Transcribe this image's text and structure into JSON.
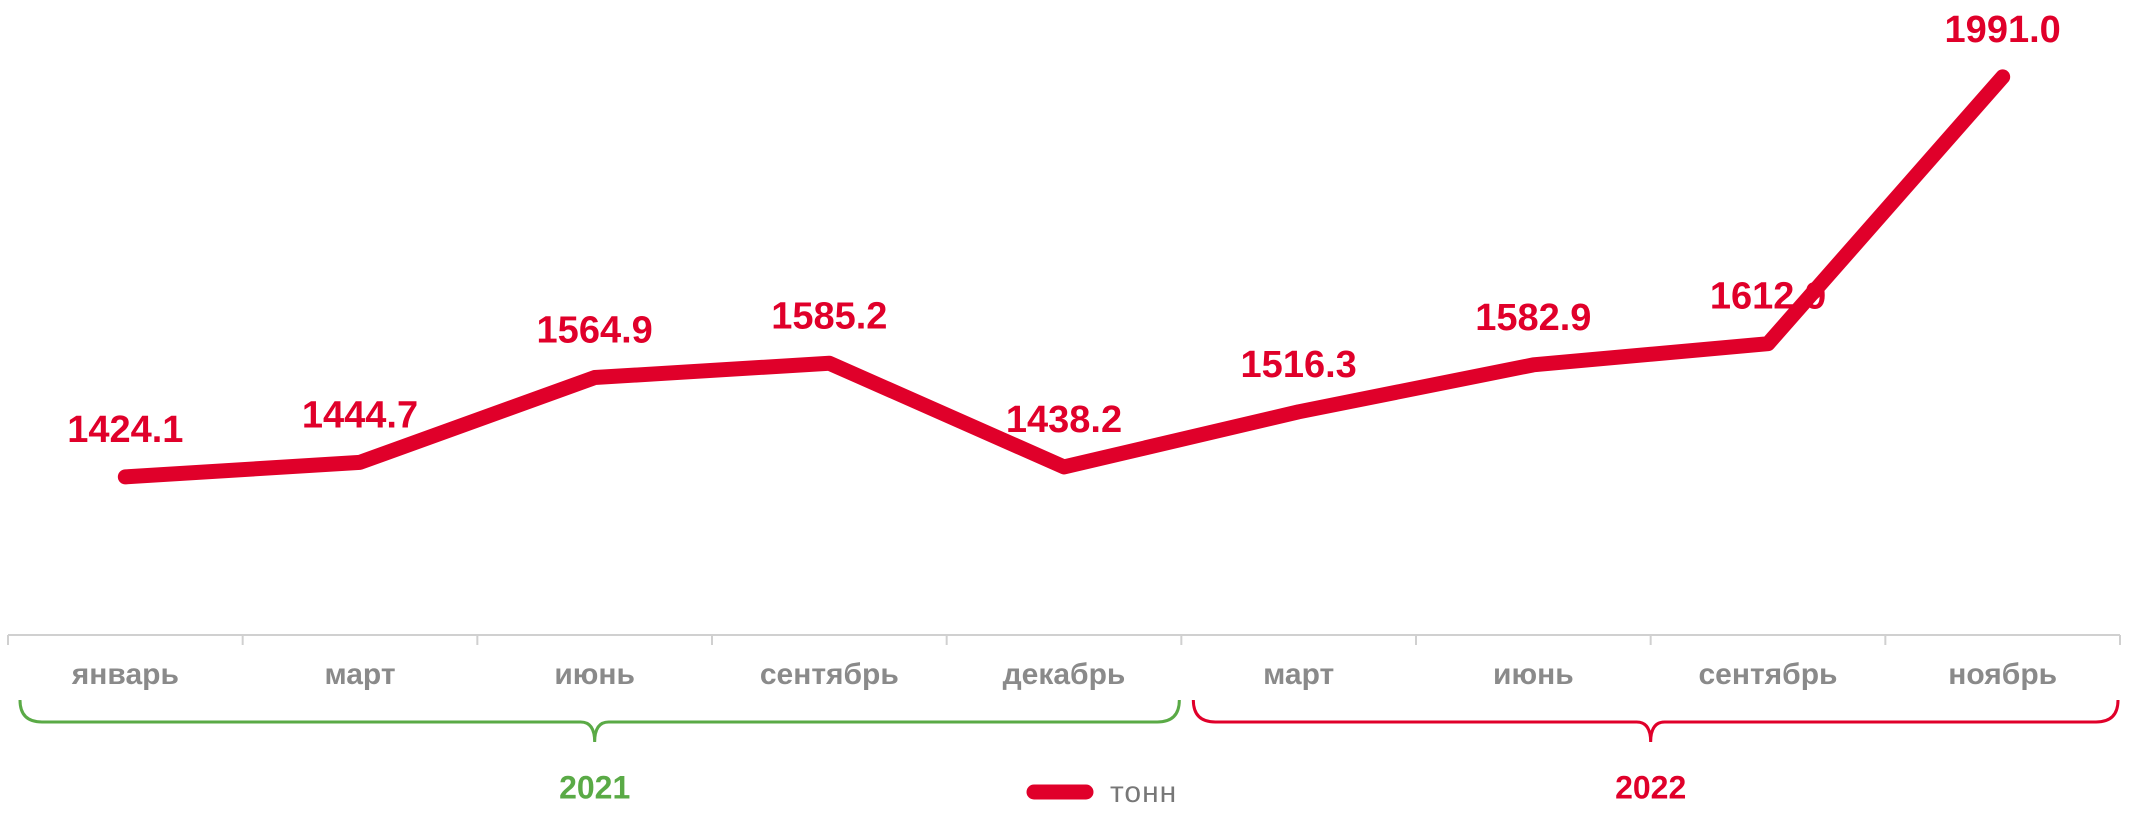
{
  "chart_data": {
    "type": "line",
    "categories": [
      "январь",
      "март",
      "июнь",
      "сентябрь",
      "декабрь",
      "март",
      "июнь",
      "сентябрь",
      "ноябрь"
    ],
    "series": [
      {
        "name": "тонн",
        "color": "#e0002a",
        "values": [
          1424.1,
          1444.7,
          1564.9,
          1585.2,
          1438.2,
          1516.3,
          1582.9,
          1612.9,
          1991.0
        ],
        "value_labels": [
          "1424.1",
          "1444.7",
          "1564.9",
          "1585.2",
          "1438.2",
          "1516.3",
          "1582.9",
          "1612.9",
          "1991.0"
        ]
      }
    ],
    "ylim": [
      1200,
      2100
    ],
    "groups": [
      {
        "label": "2021",
        "color": "#5aaa46",
        "span": 5
      },
      {
        "label": "2022",
        "color": "#e0002a",
        "span": 4
      }
    ],
    "legend": "bottom"
  }
}
